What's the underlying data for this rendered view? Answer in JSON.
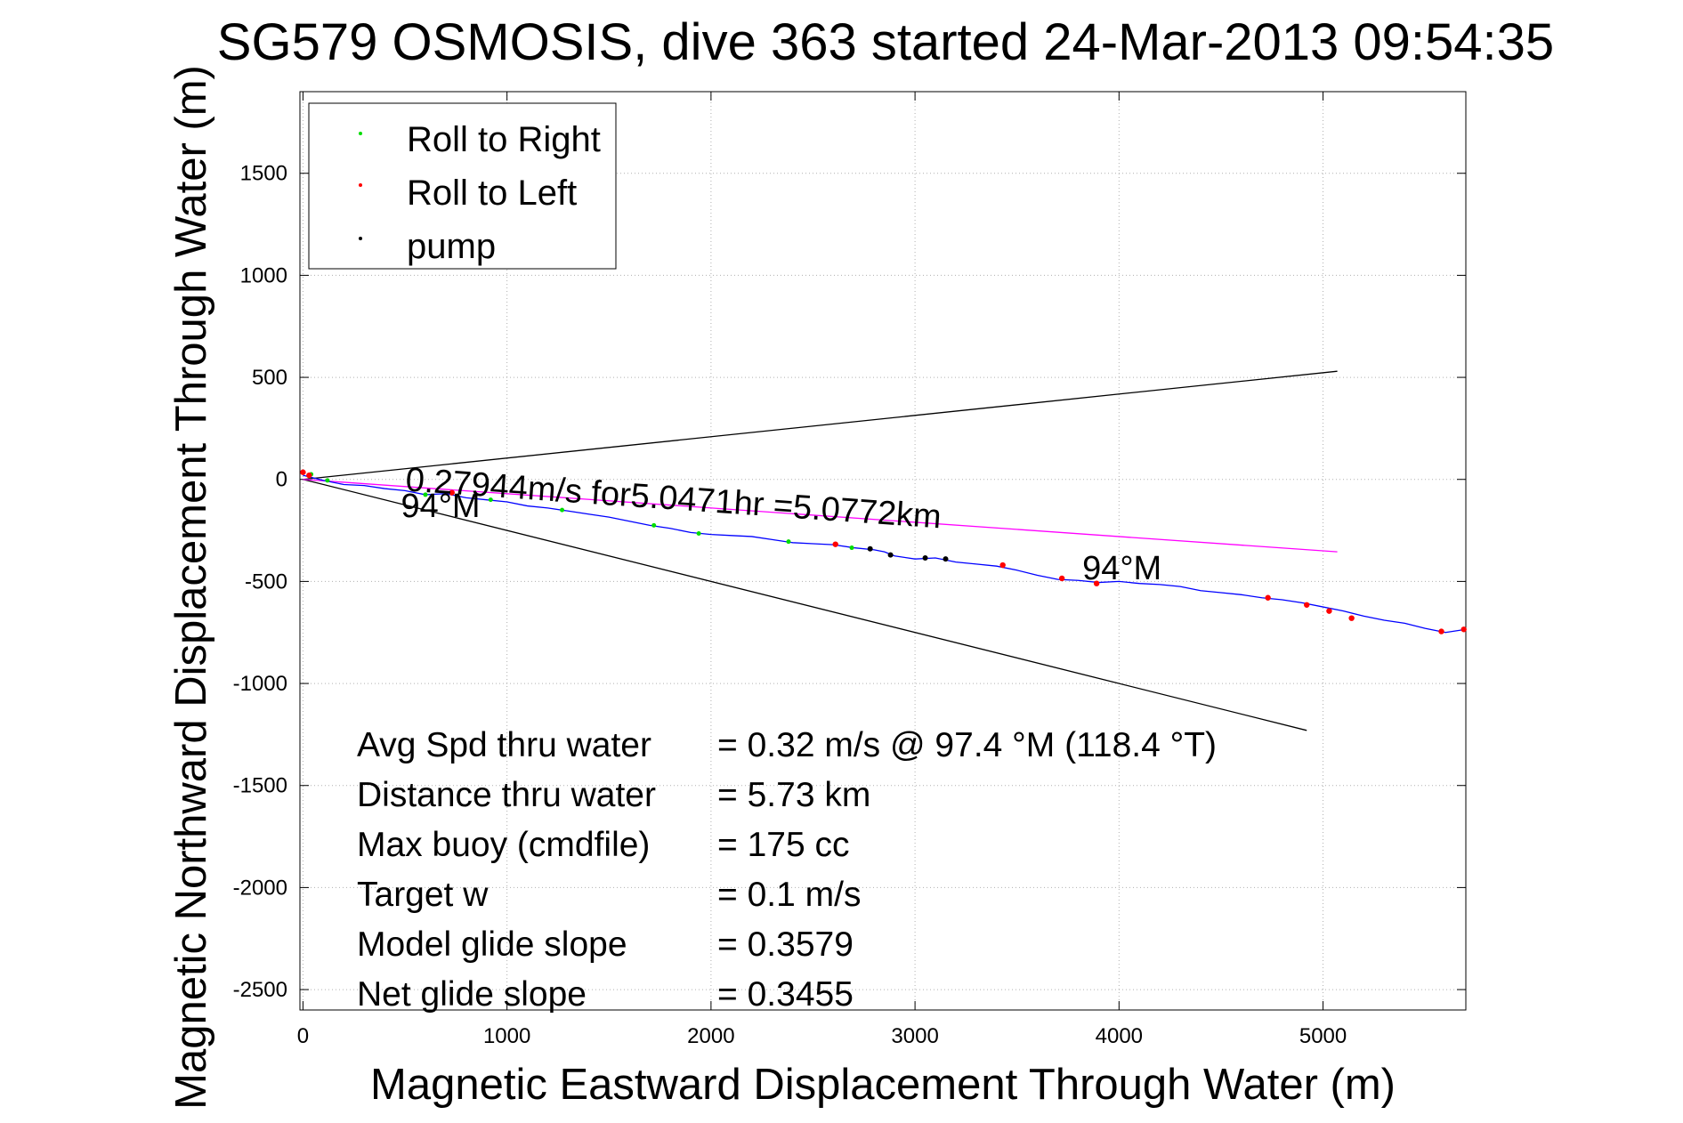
{
  "chart_data": {
    "type": "line",
    "title": "SG579 OSMOSIS, dive 363 started 24-Mar-2013 09:54:35",
    "xlabel": "Magnetic Eastward Displacement Through Water (m)",
    "ylabel": "Magnetic Northward Displacement Through Water (m)",
    "xlim": [
      -15,
      5700
    ],
    "ylim": [
      -2600,
      1900
    ],
    "xticks": [
      0,
      1000,
      2000,
      3000,
      4000,
      5000
    ],
    "yticks": [
      -2500,
      -2000,
      -1500,
      -1000,
      -500,
      0,
      500,
      1000,
      1500
    ],
    "grid": true,
    "legend": {
      "placement": "top-left",
      "entries": [
        {
          "label": "Roll to Right",
          "color": "#00dd00"
        },
        {
          "label": "Roll to Left",
          "color": "#ff0000"
        },
        {
          "label": "pump",
          "color": "#000000"
        }
      ]
    },
    "lines": [
      {
        "role": "bound-upper",
        "color": "#000000",
        "x": [
          0,
          5070
        ],
        "y": [
          0,
          530
        ]
      },
      {
        "role": "bound-lower",
        "color": "#000000",
        "x": [
          0,
          4920
        ],
        "y": [
          0,
          -1230
        ]
      },
      {
        "role": "current",
        "color": "#ff00ff",
        "x": [
          0,
          5070
        ],
        "y": [
          0,
          -355
        ]
      }
    ],
    "track": {
      "color": "#0000ff",
      "x": [
        0,
        100,
        200,
        300,
        400,
        500,
        600,
        700,
        800,
        900,
        1000,
        1100,
        1200,
        1300,
        1400,
        1500,
        1600,
        1700,
        1800,
        1900,
        2000,
        2100,
        2200,
        2300,
        2400,
        2500,
        2600,
        2700,
        2800,
        2850,
        2900,
        3000,
        3100,
        3200,
        3300,
        3400,
        3500,
        3600,
        3700,
        3800,
        3900,
        4000,
        4100,
        4200,
        4300,
        4400,
        4500,
        4600,
        4700,
        4800,
        4900,
        5000,
        5100,
        5200,
        5300,
        5400,
        5500,
        5600,
        5700
      ],
      "y": [
        20,
        -5,
        -25,
        -30,
        -45,
        -55,
        -75,
        -70,
        -90,
        -100,
        -110,
        -130,
        -140,
        -155,
        -170,
        -185,
        -205,
        -225,
        -240,
        -260,
        -270,
        -275,
        -280,
        -295,
        -310,
        -315,
        -320,
        -335,
        -345,
        -355,
        -375,
        -390,
        -385,
        -405,
        -415,
        -425,
        -445,
        -470,
        -490,
        -495,
        -505,
        -500,
        -510,
        -515,
        -525,
        -545,
        -555,
        -565,
        -580,
        -590,
        -605,
        -625,
        -645,
        -670,
        -690,
        -705,
        -730,
        -750,
        -735
      ]
    },
    "markers": [
      {
        "kind": "right",
        "x": 40,
        "y": 25
      },
      {
        "kind": "right",
        "x": 120,
        "y": -5
      },
      {
        "kind": "right",
        "x": 600,
        "y": -75
      },
      {
        "kind": "right",
        "x": 920,
        "y": -100
      },
      {
        "kind": "right",
        "x": 1270,
        "y": -150
      },
      {
        "kind": "right",
        "x": 1720,
        "y": -225
      },
      {
        "kind": "right",
        "x": 1940,
        "y": -265
      },
      {
        "kind": "right",
        "x": 2380,
        "y": -305
      },
      {
        "kind": "right",
        "x": 2690,
        "y": -335
      },
      {
        "kind": "left",
        "x": 0,
        "y": 35
      },
      {
        "kind": "left",
        "x": 30,
        "y": 20
      },
      {
        "kind": "left",
        "x": 730,
        "y": -65
      },
      {
        "kind": "left",
        "x": 2610,
        "y": -318
      },
      {
        "kind": "left",
        "x": 3430,
        "y": -420
      },
      {
        "kind": "left",
        "x": 3720,
        "y": -485
      },
      {
        "kind": "left",
        "x": 3890,
        "y": -510
      },
      {
        "kind": "left",
        "x": 4730,
        "y": -580
      },
      {
        "kind": "left",
        "x": 4920,
        "y": -615
      },
      {
        "kind": "left",
        "x": 5030,
        "y": -645
      },
      {
        "kind": "left",
        "x": 5140,
        "y": -680
      },
      {
        "kind": "left",
        "x": 5580,
        "y": -745
      },
      {
        "kind": "left",
        "x": 5690,
        "y": -735
      },
      {
        "kind": "pump",
        "x": 2780,
        "y": -340
      },
      {
        "kind": "pump",
        "x": 2880,
        "y": -370
      },
      {
        "kind": "pump",
        "x": 3050,
        "y": -385
      },
      {
        "kind": "pump",
        "x": 3150,
        "y": -390
      }
    ],
    "annotations": [
      {
        "text": "0.27944m/s for5.0471hr =5.0772km",
        "x": 500,
        "y": -55
      },
      {
        "text": "94°M",
        "x": 480,
        "y": -185
      },
      {
        "text": "94°M",
        "x": 3820,
        "y": -490
      }
    ],
    "stats": [
      {
        "label": "Avg Spd thru water",
        "value": "=  0.32 m/s @  97.4 °M (118.4 °T)"
      },
      {
        "label": "Distance thru water",
        "value": "=  5.73 km"
      },
      {
        "label": "Max buoy (cmdfile)",
        "value": "= 175 cc"
      },
      {
        "label": "Target w",
        "value": "= 0.1 m/s"
      },
      {
        "label": "Model glide slope",
        "value": "= 0.3579"
      },
      {
        "label": "Net glide slope",
        "value": "= 0.3455"
      }
    ]
  }
}
